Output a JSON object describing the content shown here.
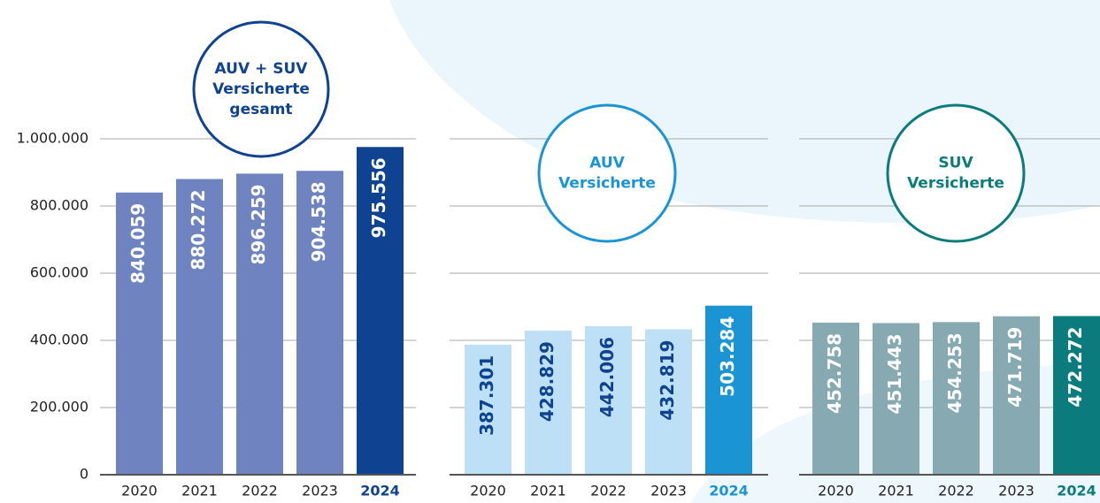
{
  "chart_data": [
    {
      "type": "bar",
      "title": [
        "AUV + SUV",
        "Versicherte",
        "gesamt"
      ],
      "title_color": "#0f4391",
      "categories": [
        "2020",
        "2021",
        "2022",
        "2023",
        "2024"
      ],
      "values": [
        840059,
        880272,
        896259,
        904538,
        975556
      ],
      "value_labels": [
        "840.059",
        "880.272",
        "896.259",
        "904.538",
        "975.556"
      ],
      "colors": [
        "#6e83bf",
        "#6e83bf",
        "#6e83bf",
        "#6e83bf",
        "#0f4391"
      ],
      "label_colors": [
        "#ffffff",
        "#ffffff",
        "#ffffff",
        "#ffffff",
        "#ffffff"
      ],
      "category_colors": [
        "#222222",
        "#222222",
        "#222222",
        "#222222",
        "#0f4391"
      ],
      "ylim": [
        0,
        1000000
      ],
      "yticks": [
        0,
        {
          "value": 200000,
          "label": "200.000"
        },
        {
          "value": 400000,
          "label": "400.000"
        },
        {
          "value": 600000,
          "label": "600.000"
        },
        {
          "value": 800000,
          "label": "800.000"
        },
        {
          "value": 1000000,
          "label": "1.000.000"
        }
      ],
      "grid": true
    },
    {
      "type": "bar",
      "title": [
        "AUV",
        "Versicherte"
      ],
      "title_color": "#1b94d4",
      "categories": [
        "2020",
        "2021",
        "2022",
        "2023",
        "2024"
      ],
      "values": [
        387301,
        428829,
        442006,
        432819,
        503284
      ],
      "value_labels": [
        "387.301",
        "428.829",
        "442.006",
        "432.819",
        "503.284"
      ],
      "colors": [
        "#bde0f7",
        "#bde0f7",
        "#bde0f7",
        "#bde0f7",
        "#1b94d4"
      ],
      "label_colors": [
        "#0f4391",
        "#0f4391",
        "#0f4391",
        "#0f4391",
        "#ffffff"
      ],
      "category_colors": [
        "#222222",
        "#222222",
        "#222222",
        "#222222",
        "#1b94d4"
      ],
      "ylim": [
        0,
        1000000
      ],
      "grid": true
    },
    {
      "type": "bar",
      "title": [
        "SUV",
        "Versicherte"
      ],
      "title_color": "#0b7b7e",
      "categories": [
        "2020",
        "2021",
        "2022",
        "2023",
        "2024"
      ],
      "values": [
        452758,
        451443,
        454253,
        471719,
        472272
      ],
      "value_labels": [
        "452.758",
        "451.443",
        "454.253",
        "471.719",
        "472.272"
      ],
      "colors": [
        "#86a9b2",
        "#86a9b2",
        "#86a9b2",
        "#86a9b2",
        "#0b7b7e"
      ],
      "label_colors": [
        "#ffffff",
        "#ffffff",
        "#ffffff",
        "#ffffff",
        "#ffffff"
      ],
      "category_colors": [
        "#222222",
        "#222222",
        "#222222",
        "#222222",
        "#0b7b7e"
      ],
      "ylim": [
        0,
        1000000
      ],
      "grid": true
    }
  ]
}
